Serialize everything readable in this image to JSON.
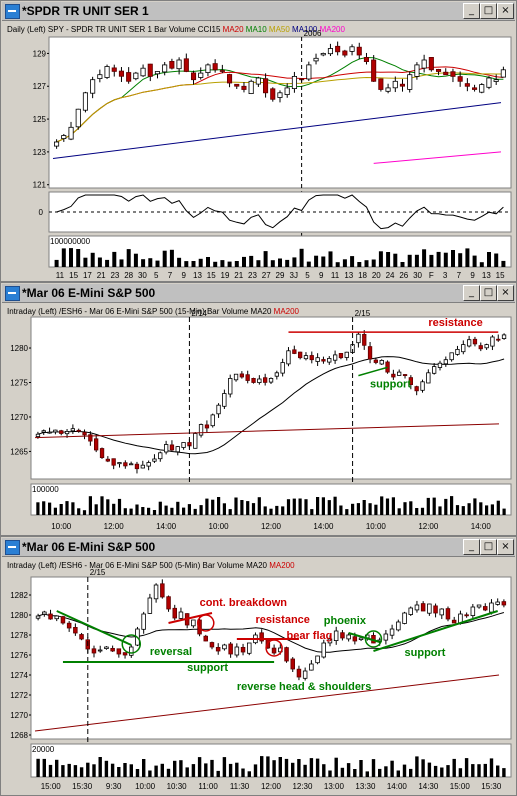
{
  "windows": [
    {
      "title": "*SPDR TR UNIT SER 1",
      "header": {
        "interval": "Daily",
        "scale": "(Left)",
        "symbol": "SPY - SPDR TR UNIT SER 1",
        "items": [
          "Bar",
          "Volume",
          "CCI15"
        ],
        "ma": [
          {
            "label": "MA20",
            "color": "#cc0000"
          },
          {
            "label": "MA10",
            "color": "#008000"
          },
          {
            "label": "MA50",
            "color": "#b8a000"
          },
          {
            "label": "MA100",
            "color": "#000080"
          },
          {
            "label": "MA200",
            "color": "#ff00cc"
          }
        ]
      }
    },
    {
      "title": "*Mar 06  E-Mini S&P 500",
      "header": {
        "interval": "Intraday",
        "scale": "(Left)",
        "symbol": "/ESH6 - Mar 06  E-Mini S&P 500  (15-Min)",
        "items": [
          "Bar",
          "Volume"
        ],
        "ma": [
          {
            "label": "MA20",
            "color": "#000000"
          },
          {
            "label": "MA200",
            "color": "#cc0000"
          }
        ]
      }
    },
    {
      "title": "*Mar 06  E-Mini S&P 500",
      "header": {
        "interval": "Intraday",
        "scale": "(Left)",
        "symbol": "/ESH6 - Mar 06  E-Mini S&P 500  (5-Min)",
        "items": [
          "Bar",
          "Volume"
        ],
        "ma": [
          {
            "label": "MA20",
            "color": "#000000"
          },
          {
            "label": "MA200",
            "color": "#cc0000"
          }
        ]
      }
    }
  ],
  "window_buttons": {
    "minimize": "_",
    "maximize": "□",
    "close": "×"
  },
  "chart_data": [
    {
      "type": "candlestick",
      "symbol": "SPY",
      "year_marker": "2006",
      "y_ticks": [
        "121",
        "123",
        "125",
        "127",
        "129"
      ],
      "x_ticks": [
        "11",
        "15",
        "17",
        "21",
        "23",
        "28",
        "30",
        "5",
        "7",
        "9",
        "13",
        "15",
        "19",
        "21",
        "23",
        "27",
        "29",
        "3J",
        "5",
        "9",
        "11",
        "13",
        "18",
        "20",
        "24",
        "26",
        "30",
        "F",
        "3",
        "7",
        "9",
        "13",
        "15"
      ],
      "ylim": [
        120.8,
        130.0
      ],
      "close": [
        123.6,
        124.0,
        124.5,
        125.6,
        126.6,
        127.4,
        127.7,
        128.2,
        127.9,
        127.6,
        127.3,
        127.8,
        128.1,
        127.6,
        127.9,
        128.3,
        128.1,
        128.6,
        127.9,
        127.4,
        127.8,
        128.3,
        128.0,
        127.9,
        127.2,
        127.0,
        126.8,
        127.3,
        127.5,
        126.6,
        126.2,
        126.6,
        126.9,
        127.6,
        127.4,
        128.3,
        128.7,
        129.0,
        129.3,
        129.1,
        128.9,
        129.4,
        128.9,
        128.5,
        127.3,
        126.8,
        126.9,
        127.3,
        127.0,
        127.7,
        128.3,
        128.6,
        128.0,
        127.9,
        127.7,
        127.6,
        127.3,
        127.0,
        126.8,
        127.1,
        127.5,
        127.4,
        128.0
      ],
      "indicator": {
        "name": "CCI15",
        "zero_label": "0"
      },
      "volume": {
        "max_label": "100000000"
      }
    },
    {
      "type": "candlestick",
      "symbol": "/ESH6",
      "session_markers": [
        "2/14",
        "2/15"
      ],
      "y_ticks": [
        "1265",
        "1270",
        "1275",
        "1280"
      ],
      "x_ticks": [
        "10:00",
        "12:00",
        "14:00",
        "10:00",
        "12:00",
        "14:00",
        "10:00",
        "12:00",
        "14:00"
      ],
      "ylim": [
        1261.0,
        1284.5
      ],
      "close": [
        1267.5,
        1268.0,
        1267.8,
        1268.1,
        1267.6,
        1267.9,
        1268.3,
        1267.9,
        1267.4,
        1266.5,
        1265.2,
        1264.1,
        1263.6,
        1263.0,
        1263.4,
        1262.9,
        1263.2,
        1262.5,
        1263.0,
        1263.4,
        1263.9,
        1264.8,
        1266.0,
        1265.2,
        1265.7,
        1266.3,
        1265.8,
        1267.6,
        1268.9,
        1268.4,
        1270.3,
        1271.7,
        1273.4,
        1275.6,
        1276.2,
        1275.8,
        1275.3,
        1275.0,
        1275.5,
        1275.0,
        1275.6,
        1276.4,
        1277.9,
        1279.6,
        1279.2,
        1278.6,
        1278.9,
        1278.3,
        1278.6,
        1278.1,
        1278.5,
        1279.0,
        1278.6,
        1279.4,
        1280.5,
        1282.0,
        1280.4,
        1278.4,
        1277.9,
        1278.2,
        1276.5,
        1275.8,
        1276.5,
        1276.0,
        1274.7,
        1273.8,
        1275.1,
        1276.4,
        1277.3,
        1277.8,
        1278.3,
        1279.3,
        1279.8,
        1280.5,
        1281.2,
        1280.6,
        1279.9,
        1280.5,
        1281.6,
        1281.2,
        1281.9
      ],
      "annotations": [
        {
          "text": "resistance",
          "color": "#cc0000"
        },
        {
          "text": "support",
          "color": "#008000"
        }
      ],
      "volume": {
        "max_label": "100000"
      }
    },
    {
      "type": "candlestick",
      "symbol": "/ESH6",
      "session_markers": [
        "2/15"
      ],
      "y_ticks": [
        "1268",
        "1270",
        "1272",
        "1274",
        "1276",
        "1278",
        "1280",
        "1282"
      ],
      "x_ticks": [
        "15:00",
        "15:30",
        "9:30",
        "10:00",
        "10:30",
        "11:00",
        "11:30",
        "12:00",
        "12:30",
        "13:00",
        "13:30",
        "14:00",
        "14:30",
        "15:00",
        "15:30"
      ],
      "ylim": [
        1267.6,
        1283.8
      ],
      "close": [
        1279.9,
        1280.3,
        1279.6,
        1279.9,
        1279.2,
        1278.7,
        1278.2,
        1277.6,
        1276.6,
        1276.2,
        1276.5,
        1276.8,
        1276.4,
        1276.1,
        1276.0,
        1276.8,
        1278.6,
        1280.1,
        1281.7,
        1283.0,
        1281.8,
        1280.6,
        1279.7,
        1280.3,
        1279.0,
        1279.5,
        1278.1,
        1277.4,
        1276.8,
        1276.4,
        1277.0,
        1276.1,
        1276.8,
        1276.3,
        1277.2,
        1278.0,
        1277.4,
        1276.7,
        1276.2,
        1276.7,
        1275.4,
        1274.6,
        1273.8,
        1274.4,
        1275.1,
        1275.9,
        1277.2,
        1277.6,
        1278.4,
        1277.7,
        1278.0,
        1277.4,
        1277.7,
        1278.0,
        1277.2,
        1277.5,
        1278.1,
        1278.6,
        1279.3,
        1280.2,
        1280.7,
        1281.0,
        1280.4,
        1281.1,
        1280.2,
        1280.6,
        1279.6,
        1279.2,
        1280.1,
        1280.0,
        1280.8,
        1281.0,
        1280.5,
        1281.2,
        1281.3,
        1281.0
      ],
      "annotations": [
        {
          "text": "cont. breakdown",
          "color": "#cc0000"
        },
        {
          "text": "resistance",
          "color": "#cc0000"
        },
        {
          "text": "bear flag",
          "color": "#cc0000"
        },
        {
          "text": "phoenix",
          "color": "#008000"
        },
        {
          "text": "reversal",
          "color": "#008000"
        },
        {
          "text": "support",
          "color": "#008000"
        },
        {
          "text": "support",
          "color": "#008000"
        },
        {
          "text": "reverse head & shoulders",
          "color": "#008000"
        }
      ],
      "volume": {
        "max_label": "20000"
      }
    }
  ]
}
